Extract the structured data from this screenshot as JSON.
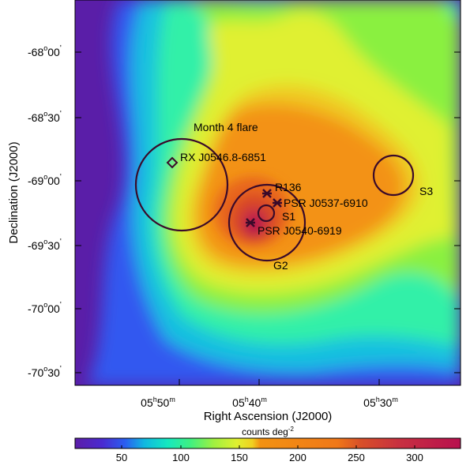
{
  "figure": {
    "ylabel": "Declination (J2000)",
    "xlabel": "Right Ascension (J2000)",
    "colorbar_label": "counts deg",
    "colorbar_label_exp": "-2"
  },
  "axes": {
    "y_ticks": [
      {
        "deg": "-68",
        "min": "00"
      },
      {
        "deg": "-68",
        "min": "30"
      },
      {
        "deg": "-69",
        "min": "00"
      },
      {
        "deg": "-69",
        "min": "30"
      },
      {
        "deg": "-70",
        "min": "00"
      },
      {
        "deg": "-70",
        "min": "30"
      }
    ],
    "x_ticks": [
      {
        "h": "05",
        "m": "50"
      },
      {
        "h": "05",
        "m": "40"
      },
      {
        "h": "05",
        "m": "30"
      }
    ],
    "colorbar_ticks": [
      "50",
      "100",
      "150",
      "200",
      "250",
      "300"
    ]
  },
  "annotations": {
    "flare": "Month 4 flare",
    "rx": "RX J0546.8-6851",
    "r136": "R136",
    "psr1": "PSR J0537-6910",
    "s1": "S1",
    "psr2": "PSR J0540-6919",
    "g2": "G2",
    "s3": "S3"
  },
  "colors": {
    "background_low": "#5a1ea8",
    "peak": "#b8144a",
    "outline": "#3a0a2a"
  }
}
